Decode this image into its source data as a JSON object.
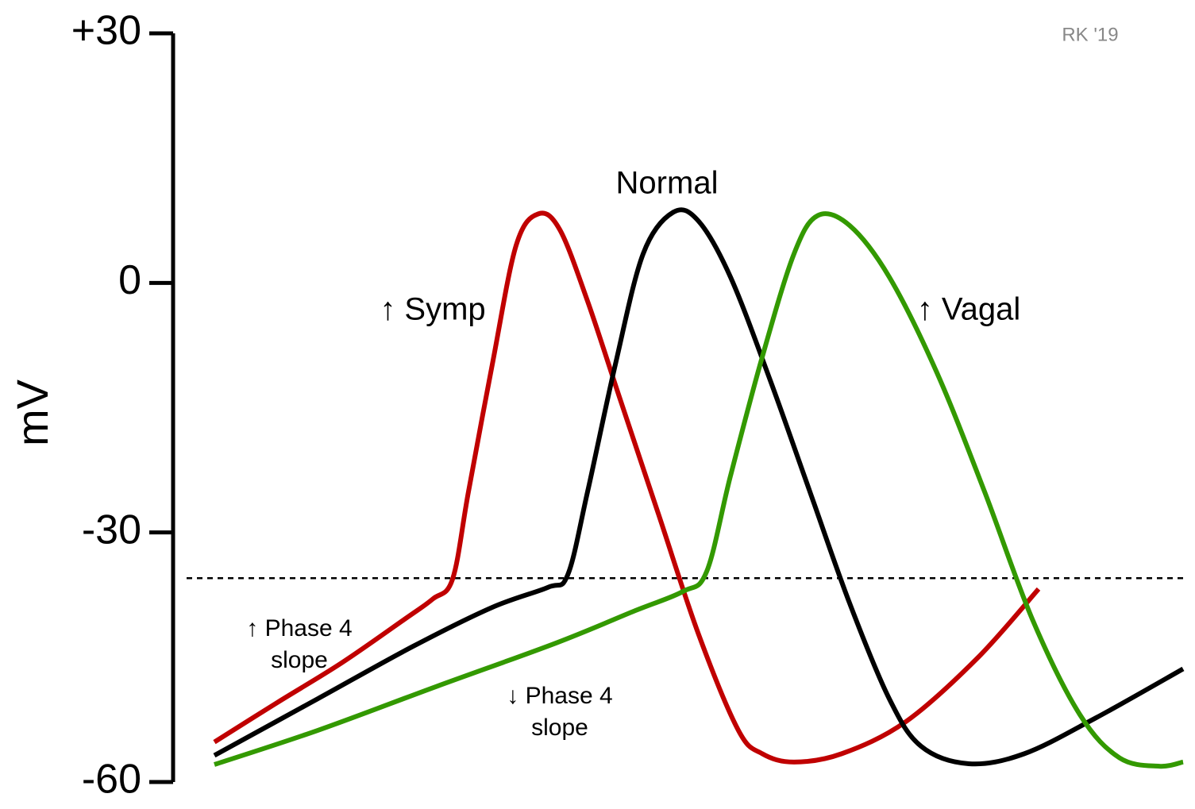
{
  "chart_data": {
    "type": "line",
    "ylabel": "mV",
    "ylim": [
      -60,
      30
    ],
    "yticks": [
      -60,
      -30,
      0,
      {
        "value": 30,
        "label": "+30"
      }
    ],
    "xlim": [
      0,
      128
    ],
    "threshold": -35.5,
    "credit": "RK '19",
    "annotations": [
      [
        "↑ Phase 4",
        "slope"
      ],
      [
        "↓ Phase 4",
        "slope"
      ]
    ],
    "series": [
      {
        "name": "↑ Symp",
        "color": "#c00000",
        "x": [
          5.2,
          13.2,
          21.2,
          29.2,
          32.7,
          35.2,
          37.2,
          40.2,
          43.2,
          46.0,
          48.7,
          52.2,
          56.2,
          61.2,
          66.2,
          71.2,
          74.2,
          78.2,
          84.2,
          92.2,
          101.2,
          109.0
        ],
        "values": [
          -55.2,
          -50.4,
          -45.7,
          -40.4,
          -38.0,
          -35.6,
          -25.1,
          -9.8,
          4.5,
          8.3,
          6.4,
          -2.2,
          -13.7,
          -28.0,
          -42.3,
          -53.8,
          -56.6,
          -57.6,
          -56.6,
          -52.8,
          -45.2,
          -36.8
        ]
      },
      {
        "name": "Normal",
        "color": "#000000",
        "x": [
          5.2,
          18.2,
          30.2,
          40.2,
          47.2,
          49.7,
          52.2,
          55.7,
          59.2,
          63.0,
          66.2,
          70.2,
          75.2,
          80.2,
          85.2,
          90.2,
          94.2,
          100.2,
          107.2,
          116.2,
          127.2
        ],
        "values": [
          -56.8,
          -50.0,
          -43.7,
          -39.0,
          -36.6,
          -35.1,
          -25.1,
          -9.8,
          3.5,
          8.5,
          7.4,
          0.7,
          -11.7,
          -25.1,
          -38.5,
          -50.0,
          -55.7,
          -57.8,
          -56.6,
          -52.3,
          -46.4
        ]
      },
      {
        "name": "↑ Vagal",
        "color": "#339900",
        "x": [
          5.2,
          18.2,
          33.2,
          48.2,
          58.2,
          64.2,
          67.2,
          70.2,
          74.2,
          78.2,
          81.2,
          85.2,
          90.2,
          96.2,
          102.2,
          108.2,
          114.2,
          119.2,
          124.2,
          127.2
        ],
        "values": [
          -57.9,
          -53.8,
          -48.5,
          -43.3,
          -39.4,
          -37.1,
          -34.7,
          -23.2,
          -8.9,
          3.5,
          8.1,
          6.9,
          0.7,
          -10.8,
          -25.1,
          -40.4,
          -51.9,
          -57.1,
          -58.1,
          -57.6
        ]
      }
    ]
  }
}
